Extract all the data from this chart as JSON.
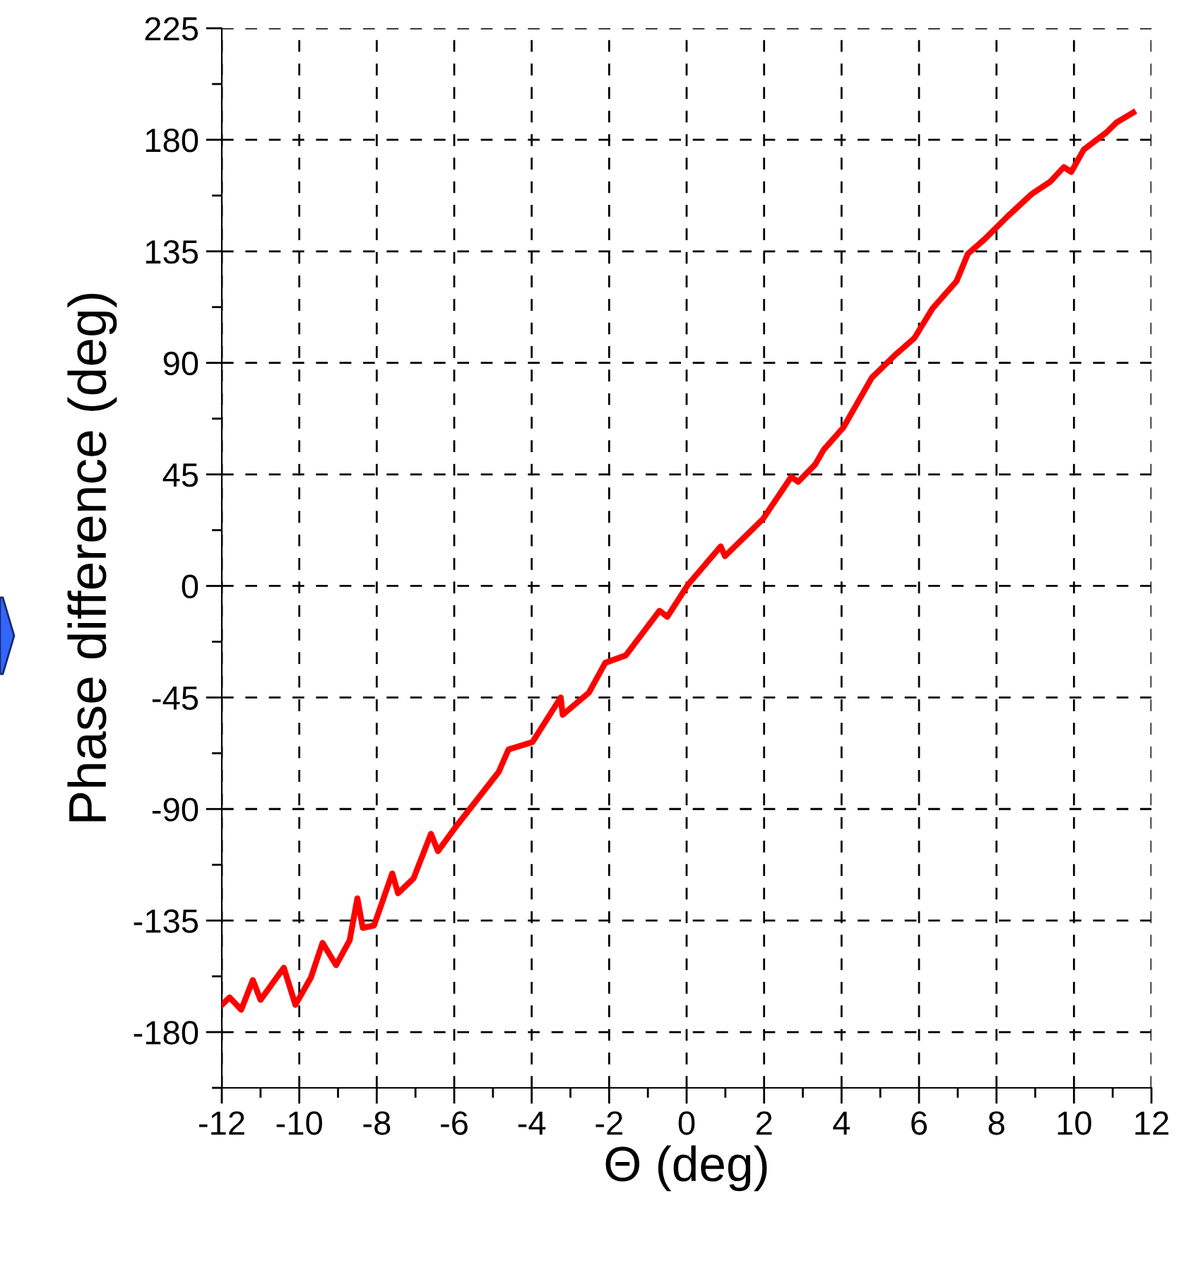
{
  "chart_data": {
    "type": "line",
    "xlabel": "Θ (deg)",
    "ylabel": "Phase difference (deg)",
    "xlim": [
      -12,
      12
    ],
    "ylim": [
      -202.5,
      225
    ],
    "xticks": [
      -12,
      -10,
      -8,
      -6,
      -4,
      -2,
      0,
      2,
      4,
      6,
      8,
      10,
      12
    ],
    "yticks": [
      -180,
      -135,
      -90,
      -45,
      0,
      45,
      90,
      135,
      180,
      225
    ],
    "grid": true,
    "line_style": "solid",
    "marker": "none",
    "series": [
      {
        "color": "#ff0000",
        "x": [
          -12,
          -11.8,
          -11.5,
          -11.2,
          -11.0,
          -10.4,
          -10.1,
          -9.7,
          -9.4,
          -9.05,
          -8.7,
          -8.5,
          -8.36,
          -8.07,
          -7.6,
          -7.45,
          -7.05,
          -6.6,
          -6.42,
          -5.95,
          -4.85,
          -4.6,
          -3.98,
          -3.25,
          -3.2,
          -2.52,
          -2.1,
          -1.57,
          -0.7,
          -0.5,
          0.04,
          0.88,
          0.99,
          1.97,
          2.7,
          2.88,
          3.32,
          3.54,
          4.05,
          4.78,
          5.37,
          5.88,
          6.35,
          6.97,
          7.26,
          7.7,
          8.28,
          8.9,
          9.38,
          9.74,
          9.93,
          10.25,
          10.84,
          11.1,
          11.53
        ],
        "values": [
          -169,
          -166,
          -171,
          -159,
          -167,
          -154,
          -169,
          -158,
          -144,
          -153,
          -143,
          -126,
          -138,
          -137,
          -116,
          -124,
          -118,
          -100,
          -107,
          -97,
          -75,
          -66,
          -63,
          -45,
          -52,
          -43,
          -31,
          -28,
          -10,
          -12.5,
          0.6,
          16,
          12,
          27,
          44,
          42,
          49,
          55,
          64,
          84,
          93,
          100,
          112,
          123,
          134,
          140,
          149,
          158,
          163,
          169,
          167,
          176,
          183,
          187,
          191
        ]
      }
    ]
  }
}
